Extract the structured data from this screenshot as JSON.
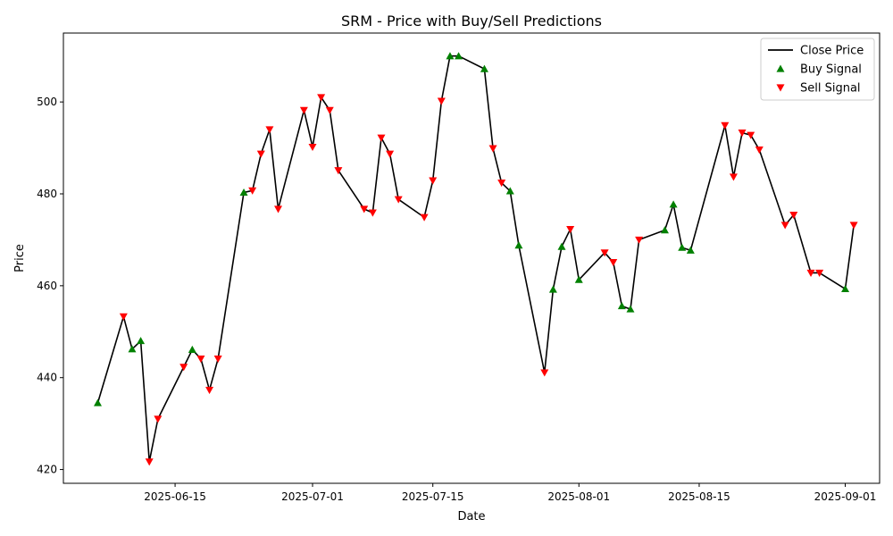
{
  "chart_data": {
    "type": "line",
    "title": "SRM - Price with Buy/Sell Predictions",
    "xlabel": "Date",
    "ylabel": "Price",
    "x_axis": {
      "type": "date",
      "range": [
        "2025-06-02",
        "2025-09-05"
      ],
      "ticks": [
        "2025-06-15",
        "2025-07-01",
        "2025-07-15",
        "2025-08-01",
        "2025-08-15",
        "2025-09-01"
      ]
    },
    "y_axis": {
      "range": [
        417,
        515
      ],
      "ticks": [
        420,
        440,
        460,
        480,
        500
      ]
    },
    "grid": false,
    "legend_position": "top-right",
    "legend": [
      {
        "label": "Close Price",
        "marker": "line",
        "color": "#000000"
      },
      {
        "label": "Buy Signal",
        "marker": "triangle-up",
        "color": "#008000"
      },
      {
        "label": "Sell Signal",
        "marker": "triangle-down",
        "color": "#ff0000"
      }
    ],
    "series": [
      {
        "name": "Close Price",
        "color": "#000000",
        "points": [
          [
            "2025-06-06",
            434.5,
            "buy"
          ],
          [
            "2025-06-09",
            453.3,
            "sell"
          ],
          [
            "2025-06-10",
            446.2,
            "buy"
          ],
          [
            "2025-06-11",
            448.0,
            "buy"
          ],
          [
            "2025-06-12",
            421.7,
            "sell"
          ],
          [
            "2025-06-13",
            431.0,
            "sell"
          ],
          [
            "2025-06-16",
            442.3,
            "sell"
          ],
          [
            "2025-06-17",
            446.1,
            "buy"
          ],
          [
            "2025-06-18",
            444.1,
            "sell"
          ],
          [
            "2025-06-19",
            437.3,
            "sell"
          ],
          [
            "2025-06-20",
            444.1,
            "sell"
          ],
          [
            "2025-06-23",
            480.3,
            "buy"
          ],
          [
            "2025-06-24",
            480.7,
            "sell"
          ],
          [
            "2025-06-25",
            488.7,
            "sell"
          ],
          [
            "2025-06-26",
            494.0,
            "sell"
          ],
          [
            "2025-06-27",
            476.7,
            "sell"
          ],
          [
            "2025-06-30",
            498.2,
            "sell"
          ],
          [
            "2025-07-01",
            490.2,
            "sell"
          ],
          [
            "2025-07-02",
            501.0,
            "sell"
          ],
          [
            "2025-07-03",
            498.2,
            "sell"
          ],
          [
            "2025-07-04",
            485.1,
            "sell"
          ],
          [
            "2025-07-07",
            476.7,
            "sell"
          ],
          [
            "2025-07-08",
            475.9,
            "sell"
          ],
          [
            "2025-07-09",
            492.2,
            "sell"
          ],
          [
            "2025-07-10",
            488.7,
            "sell"
          ],
          [
            "2025-07-11",
            478.8,
            "sell"
          ],
          [
            "2025-07-14",
            474.9,
            "sell"
          ],
          [
            "2025-07-15",
            482.9,
            "sell"
          ],
          [
            "2025-07-16",
            500.2,
            "sell"
          ],
          [
            "2025-07-17",
            510.0,
            "buy"
          ],
          [
            "2025-07-18",
            510.0,
            "buy"
          ],
          [
            "2025-07-21",
            507.2,
            "buy"
          ],
          [
            "2025-07-22",
            489.9,
            "sell"
          ],
          [
            "2025-07-23",
            482.4,
            "sell"
          ],
          [
            "2025-07-24",
            480.6,
            "buy"
          ],
          [
            "2025-07-25",
            468.8,
            "buy"
          ],
          [
            "2025-07-28",
            441.1,
            "sell"
          ],
          [
            "2025-07-29",
            459.2,
            "buy"
          ],
          [
            "2025-07-30",
            468.5,
            "buy"
          ],
          [
            "2025-07-31",
            472.3,
            "sell"
          ],
          [
            "2025-08-01",
            461.3,
            "buy"
          ],
          [
            "2025-08-04",
            467.2,
            "sell"
          ],
          [
            "2025-08-05",
            465.1,
            "sell"
          ],
          [
            "2025-08-06",
            455.6,
            "buy"
          ],
          [
            "2025-08-07",
            454.9,
            "buy"
          ],
          [
            "2025-08-08",
            470.0,
            "sell"
          ],
          [
            "2025-08-11",
            472.1,
            "buy"
          ],
          [
            "2025-08-12",
            477.7,
            "buy"
          ],
          [
            "2025-08-13",
            468.3,
            "buy"
          ],
          [
            "2025-08-14",
            467.7,
            "buy"
          ],
          [
            "2025-08-18",
            494.9,
            "sell"
          ],
          [
            "2025-08-19",
            483.7,
            "sell"
          ],
          [
            "2025-08-20",
            493.3,
            "sell"
          ],
          [
            "2025-08-21",
            492.8,
            "sell"
          ],
          [
            "2025-08-22",
            489.6,
            "sell"
          ],
          [
            "2025-08-25",
            473.2,
            "sell"
          ],
          [
            "2025-08-26",
            475.4,
            "sell"
          ],
          [
            "2025-08-28",
            462.8,
            "sell"
          ],
          [
            "2025-08-29",
            462.8,
            "sell"
          ],
          [
            "2025-09-01",
            459.3,
            "buy"
          ],
          [
            "2025-09-02",
            473.2,
            "sell"
          ]
        ]
      }
    ]
  }
}
